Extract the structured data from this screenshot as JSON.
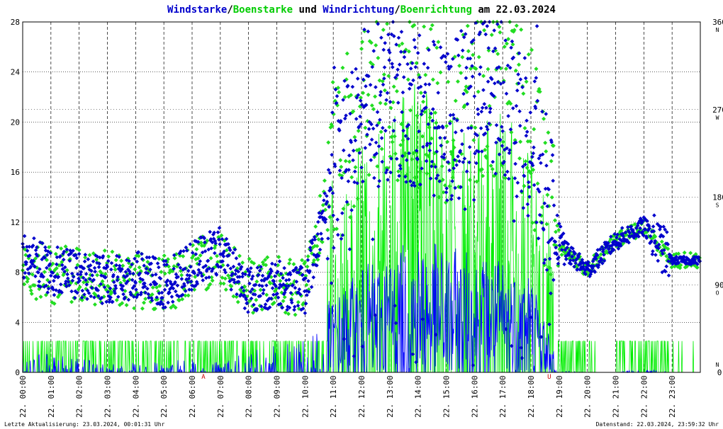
{
  "chart_data": {
    "type": "line",
    "title_parts": [
      {
        "text": "Windstarke",
        "color": "#0000cc"
      },
      {
        "text": "/",
        "color": "#000000"
      },
      {
        "text": "Boenstarke",
        "color": "#00cc00"
      },
      {
        "text": " und ",
        "color": "#000000"
      },
      {
        "text": "Windrichtung",
        "color": "#0000cc"
      },
      {
        "text": "/",
        "color": "#000000"
      },
      {
        "text": "Boenrichtung",
        "color": "#00cc00"
      },
      {
        "text": " am 22.03.2024",
        "color": "#000000"
      }
    ],
    "y_left": {
      "min": 0,
      "max": 28,
      "ticks": [
        "0",
        "4",
        "8",
        "12",
        "16",
        "20",
        "24",
        "28"
      ]
    },
    "y_right": {
      "min": 0,
      "max": 360,
      "ticks": [
        "0",
        "90",
        "180",
        "270",
        "360"
      ],
      "compass": [
        {
          "value": 0,
          "label": "N"
        },
        {
          "value": 90,
          "label": "O"
        },
        {
          "value": 180,
          "label": "S"
        },
        {
          "value": 270,
          "label": "W"
        },
        {
          "value": 360,
          "label": "N"
        }
      ]
    },
    "x_ticks": [
      "22. 00:00",
      "22. 01:00",
      "22. 02:00",
      "22. 03:00",
      "22. 04:00",
      "22. 05:00",
      "22. 06:00",
      "22. 07:00",
      "22. 08:00",
      "22. 09:00",
      "22. 10:00",
      "22. 11:00",
      "22. 12:00",
      "22. 13:00",
      "22. 14:00",
      "22. 15:00",
      "22. 16:00",
      "22. 17:00",
      "22. 18:00",
      "22. 19:00",
      "22. 20:00",
      "22. 21:00",
      "22. 22:00",
      "22. 23:00"
    ],
    "sun_markers": [
      {
        "hour": 6.4,
        "label": "A"
      },
      {
        "hour": 18.65,
        "label": "U"
      }
    ],
    "colors": {
      "wind": "#0000ff",
      "gust": "#00ee00",
      "dir": "#0000cc",
      "gustdir": "#22dd22",
      "grid": "#000000"
    },
    "series": [
      {
        "name": "Windstarke",
        "unit": "ms",
        "hourly_mean": [
          1.2,
          1.0,
          0.8,
          0.4,
          0.6,
          0.5,
          0.8,
          0.5,
          1.2,
          1.5,
          1.8,
          2.5,
          3.5,
          4.0,
          4.5,
          4.2,
          4.0,
          3.8,
          3.5,
          0.1,
          0.0,
          0.0,
          0.2,
          0.0
        ]
      },
      {
        "name": "Boenstarke",
        "hourly_mean": [
          2.5,
          2.5,
          2.5,
          0,
          2.5,
          2.5,
          2.5,
          2.5,
          5,
          5,
          5,
          7.5,
          10,
          12.5,
          15,
          12.5,
          12.5,
          12.5,
          10,
          2.5,
          0,
          0,
          2.5,
          0
        ]
      },
      {
        "name": "Windrichtung",
        "unit": "deg",
        "hourly_mean": [
          120,
          105,
          100,
          95,
          100,
          90,
          110,
          125,
          85,
          90,
          85,
          200,
          270,
          280,
          270,
          250,
          280,
          290,
          240,
          130,
          105,
          135,
          150,
          115
        ]
      },
      {
        "name": "Boenrichtung",
        "hourly_mean": [
          110,
          100,
          100,
          95,
          95,
          90,
          105,
          120,
          90,
          90,
          85,
          210,
          275,
          280,
          275,
          260,
          285,
          290,
          250,
          130,
          105,
          135,
          150,
          115
        ]
      }
    ]
  },
  "footer": {
    "left": "Letzte Aktualisierung: 23.03.2024, 00:01:31 Uhr",
    "right": "Datenstand: 22.03.2024, 23:59:32 Uhr"
  }
}
